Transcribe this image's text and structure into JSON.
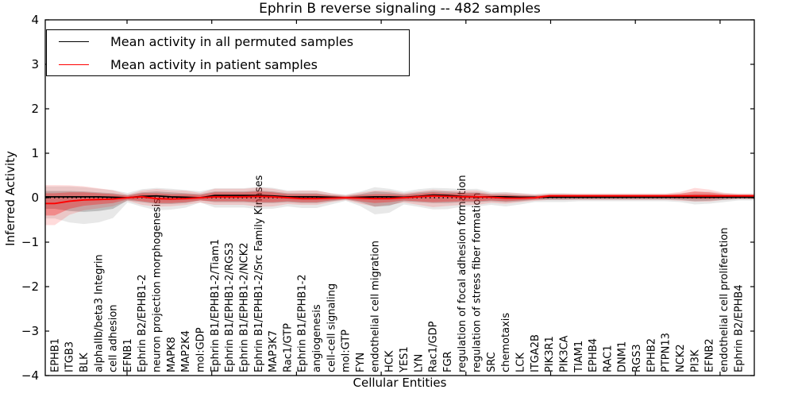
{
  "title": "Ephrin B reverse signaling -- 482 samples",
  "axes": {
    "x_label": "Cellular Entities",
    "y_label": "Inferred Activity",
    "y_tick_labels": [
      "4",
      "3",
      "2",
      "1",
      "0",
      "−1",
      "−2",
      "−3",
      "−4"
    ],
    "y_tick_values": [
      4,
      3,
      2,
      1,
      0,
      -1,
      -2,
      -3,
      -4
    ]
  },
  "colors": {
    "permuted_line": "#000000",
    "patient_line": "#ff0000",
    "permuted_band_inner": "rgba(110,110,110,0.35)",
    "permuted_band_outer": "rgba(110,110,110,0.16)",
    "patient_band_inner": "rgba(255,0,0,0.30)",
    "patient_band_outer": "rgba(255,0,0,0.14)",
    "zero_line": "#000000",
    "frame": "#000000"
  },
  "chart_data": {
    "type": "line",
    "title": "Ephrin B reverse signaling -- 482 samples",
    "xlabel": "Cellular Entities",
    "ylabel": "Inferred Activity",
    "ylim": [
      -4,
      4
    ],
    "grid": false,
    "legend_position": "upper left",
    "zero_reference_line": 0,
    "categories": [
      "EPHB1",
      "ITGB3",
      "BLK",
      "alphaIIb/beta3 Integrin",
      "cell adhesion",
      "EFNB1",
      "Ephrin B2/EPHB1-2",
      "neuron projection morphogenesis",
      "MAPK8",
      "MAP2K4",
      "mol:GDP",
      "Ephrin B1/EPHB1-2/Tiam1",
      "Ephrin B1/EPHB1-2/RGS3",
      "Ephrin B1/EPHB1-2/NCK2",
      "Ephrin B1/EPHB1-2/Src Family Kinases",
      "MAP3K7",
      "Rac1/GTP",
      "Ephrin B1/EPHB1-2",
      "angiogenesis",
      "cell-cell signaling",
      "mol:GTP",
      "FYN",
      "endothelial cell migration",
      "HCK",
      "YES1",
      "LYN",
      "Rac1/GDP",
      "FGR",
      "regulation of focal adhesion formation",
      "regulation of stress fiber formation",
      "SRC",
      "chemotaxis",
      "LCK",
      "ITGA2B",
      "PIK3R1",
      "PIK3CA",
      "TIAM1",
      "EPHB4",
      "RAC1",
      "DNM1",
      "RGS3",
      "EPHB2",
      "PTPN13",
      "NCK2",
      "PI3K",
      "EFNB2",
      "endothelial cell proliferation",
      "Ephrin B2/EPHB4"
    ],
    "series": [
      {
        "name": "Mean activity in all permuted samples",
        "color": "#000000",
        "values": [
          0.02,
          0.02,
          0.02,
          0.02,
          0.01,
          0.0,
          0.03,
          0.04,
          0.02,
          0.01,
          0.0,
          0.05,
          0.05,
          0.05,
          0.05,
          0.04,
          0.02,
          0.02,
          0.02,
          0.01,
          0.0,
          0.01,
          0.02,
          0.02,
          0.01,
          0.03,
          0.06,
          0.05,
          0.03,
          0.02,
          0.02,
          0.02,
          0.01,
          0.01,
          0.01,
          0.01,
          0.01,
          0.01,
          0.01,
          0.01,
          0.01,
          0.01,
          0.01,
          0.01,
          0.01,
          0.01,
          0.01,
          0.01
        ],
        "band_lower": [
          -0.25,
          -0.3,
          -0.32,
          -0.3,
          -0.25,
          -0.06,
          -0.1,
          -0.14,
          -0.14,
          -0.12,
          -0.06,
          -0.1,
          -0.1,
          -0.1,
          -0.12,
          -0.12,
          -0.1,
          -0.12,
          -0.12,
          -0.08,
          -0.04,
          -0.1,
          -0.2,
          -0.18,
          -0.08,
          -0.1,
          -0.12,
          -0.12,
          -0.1,
          -0.1,
          -0.08,
          -0.1,
          -0.08,
          -0.05,
          -0.05,
          -0.05,
          -0.04,
          -0.04,
          -0.04,
          -0.04,
          -0.04,
          -0.04,
          -0.04,
          -0.05,
          -0.08,
          -0.07,
          -0.05,
          -0.03
        ],
        "band_upper": [
          0.15,
          0.15,
          0.14,
          0.12,
          0.1,
          0.06,
          0.12,
          0.14,
          0.12,
          0.1,
          0.08,
          0.14,
          0.14,
          0.14,
          0.16,
          0.14,
          0.1,
          0.1,
          0.1,
          0.06,
          0.04,
          0.08,
          0.14,
          0.12,
          0.08,
          0.12,
          0.15,
          0.14,
          0.12,
          0.12,
          0.08,
          0.08,
          0.06,
          0.05,
          0.06,
          0.06,
          0.05,
          0.05,
          0.05,
          0.05,
          0.05,
          0.05,
          0.05,
          0.06,
          0.08,
          0.08,
          0.06,
          0.05
        ]
      },
      {
        "name": "Mean activity in patient samples",
        "color": "#ff0000",
        "values": [
          -0.13,
          -0.08,
          -0.05,
          -0.04,
          -0.03,
          0.0,
          0.02,
          -0.02,
          -0.03,
          -0.02,
          0.0,
          0.02,
          0.02,
          0.02,
          0.03,
          0.02,
          0.0,
          -0.02,
          -0.02,
          -0.01,
          0.0,
          -0.01,
          -0.02,
          -0.02,
          0.0,
          0.02,
          0.04,
          0.03,
          0.02,
          0.02,
          0.01,
          -0.01,
          -0.01,
          0.0,
          0.04,
          0.04,
          0.04,
          0.04,
          0.04,
          0.04,
          0.04,
          0.04,
          0.04,
          0.04,
          0.04,
          0.04,
          0.04,
          0.04
        ],
        "band_lower": [
          -0.4,
          -0.25,
          -0.18,
          -0.15,
          -0.12,
          -0.04,
          -0.08,
          -0.12,
          -0.12,
          -0.1,
          -0.06,
          -0.08,
          -0.08,
          -0.08,
          -0.1,
          -0.1,
          -0.08,
          -0.1,
          -0.1,
          -0.06,
          -0.03,
          -0.08,
          -0.12,
          -0.1,
          -0.06,
          -0.08,
          -0.1,
          -0.09,
          -0.08,
          -0.08,
          -0.06,
          -0.08,
          -0.06,
          -0.04,
          -0.01,
          -0.01,
          -0.01,
          -0.01,
          -0.01,
          -0.01,
          -0.01,
          -0.01,
          -0.01,
          -0.02,
          -0.03,
          -0.03,
          -0.01,
          0.0
        ],
        "band_upper": [
          0.1,
          0.12,
          0.12,
          0.1,
          0.08,
          0.04,
          0.1,
          0.1,
          0.08,
          0.08,
          0.06,
          0.12,
          0.12,
          0.12,
          0.14,
          0.12,
          0.08,
          0.08,
          0.08,
          0.05,
          0.03,
          0.06,
          0.08,
          0.08,
          0.06,
          0.09,
          0.12,
          0.1,
          0.1,
          0.1,
          0.06,
          0.06,
          0.05,
          0.04,
          0.07,
          0.07,
          0.07,
          0.07,
          0.07,
          0.07,
          0.07,
          0.07,
          0.07,
          0.09,
          0.14,
          0.12,
          0.08,
          0.07
        ]
      }
    ]
  }
}
